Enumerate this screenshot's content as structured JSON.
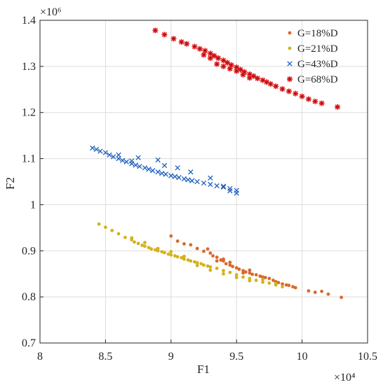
{
  "chart_data": {
    "type": "scatter",
    "xlabel": "F1",
    "ylabel": "F2",
    "x_exponent": "×10⁴",
    "y_exponent": "×10⁶",
    "xlim": [
      8,
      10.5
    ],
    "ylim": [
      0.7,
      1.4
    ],
    "x_ticks": [
      "8",
      "8.5",
      "9",
      "9.5",
      "10",
      "10.5"
    ],
    "y_ticks": [
      "0.7",
      "0.8",
      "0.9",
      "1",
      "1.1",
      "1.2",
      "1.3",
      "1.4"
    ],
    "grid": true,
    "legend_position": "top-right",
    "series": [
      {
        "name": "G=18%D",
        "marker": "dot",
        "color": "#d9692a",
        "points": [
          [
            9.0,
            0.932
          ],
          [
            9.05,
            0.921
          ],
          [
            9.1,
            0.915
          ],
          [
            9.15,
            0.913
          ],
          [
            9.2,
            0.905
          ],
          [
            9.25,
            0.899
          ],
          [
            9.28,
            0.904
          ],
          [
            9.3,
            0.895
          ],
          [
            9.32,
            0.889
          ],
          [
            9.35,
            0.886
          ],
          [
            9.38,
            0.88
          ],
          [
            9.4,
            0.878
          ],
          [
            9.42,
            0.872
          ],
          [
            9.45,
            0.869
          ],
          [
            9.47,
            0.866
          ],
          [
            9.5,
            0.863
          ],
          [
            9.52,
            0.86
          ],
          [
            9.55,
            0.857
          ],
          [
            9.57,
            0.854
          ],
          [
            9.6,
            0.852
          ],
          [
            9.62,
            0.849
          ],
          [
            9.65,
            0.848
          ],
          [
            9.68,
            0.845
          ],
          [
            9.7,
            0.843
          ],
          [
            9.72,
            0.842
          ],
          [
            9.75,
            0.84
          ],
          [
            9.78,
            0.836
          ],
          [
            9.8,
            0.833
          ],
          [
            9.82,
            0.831
          ],
          [
            9.85,
            0.828
          ],
          [
            9.88,
            0.826
          ],
          [
            9.9,
            0.825
          ],
          [
            9.93,
            0.822
          ],
          [
            9.95,
            0.82
          ],
          [
            9.4,
            0.882
          ],
          [
            9.45,
            0.875
          ],
          [
            9.35,
            0.878
          ],
          [
            9.55,
            0.852
          ],
          [
            9.6,
            0.858
          ],
          [
            10.05,
            0.813
          ],
          [
            10.1,
            0.81
          ],
          [
            10.2,
            0.806
          ],
          [
            10.3,
            0.799
          ],
          [
            10.15,
            0.812
          ]
        ]
      },
      {
        "name": "G=21%D",
        "marker": "dot",
        "color": "#d4b21a",
        "points": [
          [
            8.45,
            0.958
          ],
          [
            8.5,
            0.951
          ],
          [
            8.55,
            0.944
          ],
          [
            8.6,
            0.937
          ],
          [
            8.65,
            0.929
          ],
          [
            8.7,
            0.924
          ],
          [
            8.72,
            0.919
          ],
          [
            8.75,
            0.916
          ],
          [
            8.78,
            0.912
          ],
          [
            8.8,
            0.91
          ],
          [
            8.83,
            0.907
          ],
          [
            8.85,
            0.904
          ],
          [
            8.88,
            0.902
          ],
          [
            8.9,
            0.9
          ],
          [
            8.93,
            0.898
          ],
          [
            8.95,
            0.896
          ],
          [
            8.98,
            0.893
          ],
          [
            9.0,
            0.891
          ],
          [
            9.03,
            0.889
          ],
          [
            9.05,
            0.887
          ],
          [
            9.08,
            0.885
          ],
          [
            9.1,
            0.882
          ],
          [
            9.13,
            0.88
          ],
          [
            9.15,
            0.878
          ],
          [
            9.18,
            0.876
          ],
          [
            9.2,
            0.874
          ],
          [
            9.23,
            0.872
          ],
          [
            9.25,
            0.869
          ],
          [
            9.28,
            0.867
          ],
          [
            9.3,
            0.865
          ],
          [
            9.35,
            0.862
          ],
          [
            9.4,
            0.857
          ],
          [
            9.45,
            0.853
          ],
          [
            9.5,
            0.848
          ],
          [
            9.55,
            0.843
          ],
          [
            9.6,
            0.84
          ],
          [
            9.65,
            0.836
          ],
          [
            9.7,
            0.832
          ],
          [
            9.75,
            0.83
          ],
          [
            9.8,
            0.826
          ],
          [
            9.85,
            0.822
          ],
          [
            8.9,
            0.905
          ],
          [
            9.0,
            0.898
          ],
          [
            9.1,
            0.888
          ],
          [
            8.8,
            0.918
          ],
          [
            8.7,
            0.928
          ],
          [
            9.2,
            0.868
          ],
          [
            9.3,
            0.858
          ],
          [
            9.4,
            0.85
          ],
          [
            9.5,
            0.842
          ],
          [
            9.6,
            0.835
          ],
          [
            9.7,
            0.838
          ],
          [
            9.8,
            0.829
          ]
        ]
      },
      {
        "name": "G=43%D",
        "marker": "x",
        "color": "#1f5fbf",
        "points": [
          [
            8.4,
            1.123
          ],
          [
            8.43,
            1.12
          ],
          [
            8.46,
            1.116
          ],
          [
            8.5,
            1.113
          ],
          [
            8.53,
            1.108
          ],
          [
            8.56,
            1.104
          ],
          [
            8.6,
            1.1
          ],
          [
            8.63,
            1.096
          ],
          [
            8.66,
            1.093
          ],
          [
            8.7,
            1.089
          ],
          [
            8.73,
            1.086
          ],
          [
            8.76,
            1.083
          ],
          [
            8.8,
            1.08
          ],
          [
            8.83,
            1.077
          ],
          [
            8.86,
            1.074
          ],
          [
            8.9,
            1.071
          ],
          [
            8.93,
            1.068
          ],
          [
            8.96,
            1.066
          ],
          [
            9.0,
            1.063
          ],
          [
            9.03,
            1.061
          ],
          [
            9.06,
            1.059
          ],
          [
            9.1,
            1.056
          ],
          [
            9.13,
            1.054
          ],
          [
            9.16,
            1.052
          ],
          [
            9.2,
            1.05
          ],
          [
            9.25,
            1.047
          ],
          [
            9.3,
            1.044
          ],
          [
            9.35,
            1.041
          ],
          [
            9.4,
            1.038
          ],
          [
            9.45,
            1.035
          ],
          [
            9.5,
            1.031
          ],
          [
            8.75,
            1.102
          ],
          [
            8.9,
            1.097
          ],
          [
            8.95,
            1.085
          ],
          [
            9.05,
            1.08
          ],
          [
            9.15,
            1.071
          ],
          [
            9.3,
            1.058
          ],
          [
            9.4,
            1.04
          ],
          [
            9.45,
            1.03
          ],
          [
            9.5,
            1.025
          ],
          [
            8.6,
            1.108
          ],
          [
            8.7,
            1.095
          ]
        ]
      },
      {
        "name": "G=68%D",
        "marker": "star",
        "color": "#e8101a",
        "points": [
          [
            8.88,
            1.378
          ],
          [
            8.95,
            1.369
          ],
          [
            9.02,
            1.36
          ],
          [
            9.08,
            1.353
          ],
          [
            9.12,
            1.349
          ],
          [
            9.18,
            1.343
          ],
          [
            9.22,
            1.338
          ],
          [
            9.26,
            1.334
          ],
          [
            9.3,
            1.328
          ],
          [
            9.33,
            1.323
          ],
          [
            9.36,
            1.318
          ],
          [
            9.4,
            1.313
          ],
          [
            9.43,
            1.308
          ],
          [
            9.46,
            1.303
          ],
          [
            9.5,
            1.298
          ],
          [
            9.53,
            1.293
          ],
          [
            9.56,
            1.288
          ],
          [
            9.6,
            1.283
          ],
          [
            9.63,
            1.279
          ],
          [
            9.66,
            1.274
          ],
          [
            9.7,
            1.27
          ],
          [
            9.73,
            1.266
          ],
          [
            9.76,
            1.262
          ],
          [
            9.8,
            1.257
          ],
          [
            9.85,
            1.251
          ],
          [
            9.9,
            1.246
          ],
          [
            9.95,
            1.241
          ],
          [
            10.0,
            1.235
          ],
          [
            10.05,
            1.229
          ],
          [
            10.1,
            1.224
          ],
          [
            10.15,
            1.22
          ],
          [
            9.4,
            1.3
          ],
          [
            9.35,
            1.305
          ],
          [
            9.45,
            1.295
          ],
          [
            9.55,
            1.282
          ],
          [
            9.6,
            1.275
          ],
          [
            9.3,
            1.318
          ],
          [
            9.25,
            1.325
          ],
          [
            9.5,
            1.29
          ],
          [
            10.27,
            1.212
          ]
        ]
      }
    ]
  }
}
